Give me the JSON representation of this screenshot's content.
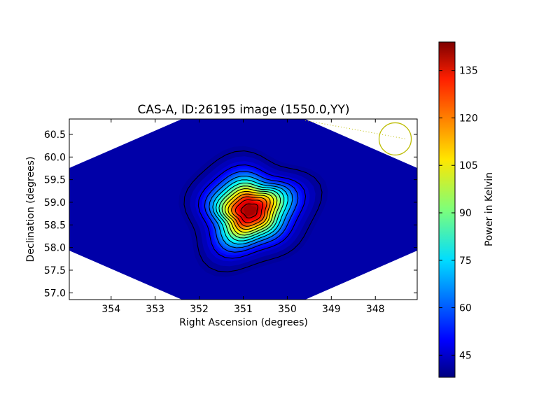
{
  "chart_data": {
    "type": "heatmap",
    "title": "CAS-A, ID:26195 image (1550.0,YY)",
    "xlabel": "Right Ascension (degrees)",
    "ylabel": "Declination (degrees)",
    "x_reversed": true,
    "xlim": [
      354.95,
      347.05
    ],
    "ylim": [
      56.85,
      60.84
    ],
    "x_ticks": [
      354,
      353,
      352,
      351,
      350,
      349,
      348
    ],
    "y_ticks": [
      57.0,
      57.5,
      58.0,
      58.5,
      59.0,
      59.5,
      60.0,
      60.5
    ],
    "colorbar": {
      "label": "Power in Kelvin",
      "range": [
        38,
        144
      ],
      "ticks": [
        45,
        60,
        75,
        90,
        105,
        120,
        135
      ],
      "colormap": "jet"
    },
    "source": {
      "ra": 350.85,
      "dec": 58.82,
      "peak_kelvin": 142,
      "background_kelvin": 40
    },
    "contour_levels_kelvin": [
      42,
      50,
      58,
      66,
      74,
      82,
      90,
      98,
      106,
      114,
      122,
      130,
      138
    ],
    "beam_marker": {
      "ra": 347.55,
      "dec": 60.4,
      "color": "#bcbc00"
    },
    "background_color": "#ffffff"
  }
}
